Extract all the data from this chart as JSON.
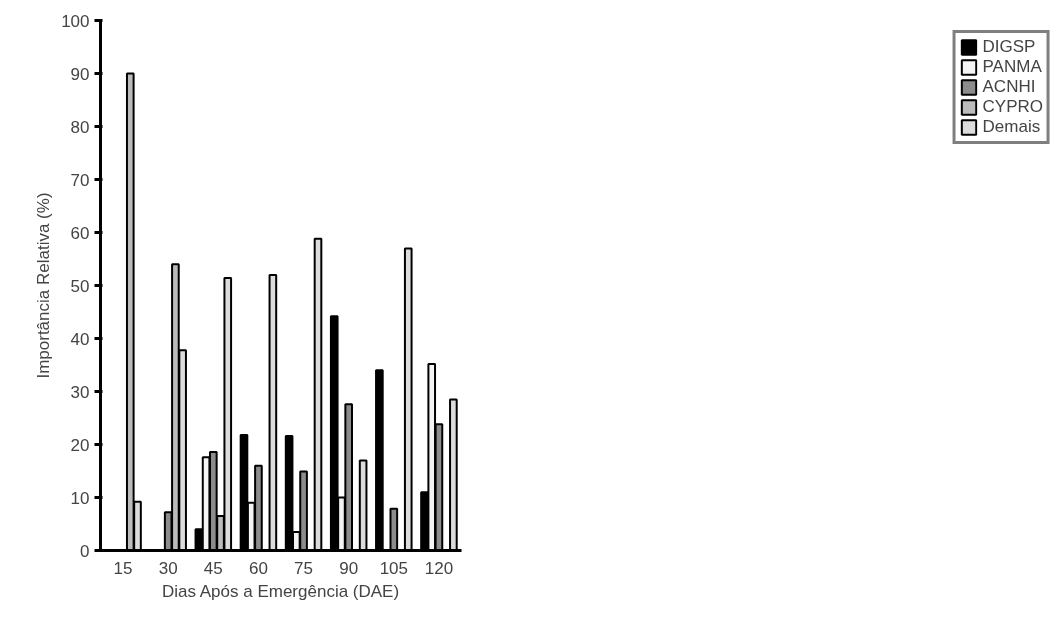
{
  "chart_data": {
    "type": "bar",
    "xlabel": "Dias Após a Emergência (DAE)",
    "ylabel": "Importância Relativa (%)",
    "categories": [
      "15",
      "30",
      "45",
      "60",
      "75",
      "90",
      "105",
      "120"
    ],
    "series": [
      {
        "name": "DIGSP",
        "color": "#000000",
        "values": [
          null,
          null,
          4,
          21.8,
          21.6,
          44.2,
          34,
          11
        ]
      },
      {
        "name": "PANMA",
        "color": "#f4f4f4",
        "values": [
          null,
          null,
          17.6,
          9,
          3.5,
          10,
          null,
          35.2
        ]
      },
      {
        "name": "ACNHI",
        "color": "#8c8c8c",
        "values": [
          null,
          7.2,
          18.6,
          16,
          14.9,
          27.6,
          7.9,
          23.8
        ]
      },
      {
        "name": "CYPRO",
        "color": "#bcbcbc",
        "values": [
          90,
          54,
          6.5,
          null,
          null,
          null,
          null,
          null
        ]
      },
      {
        "name": "Demais",
        "color": "#dcdcdc",
        "values": [
          9.2,
          37.8,
          51.4,
          52,
          58.8,
          17,
          57,
          28.5
        ]
      }
    ],
    "ylim": [
      0,
      100
    ],
    "yticks": [
      0,
      10,
      20,
      30,
      40,
      50,
      60,
      70,
      80,
      90,
      100
    ],
    "grid": false,
    "legend": "right"
  }
}
